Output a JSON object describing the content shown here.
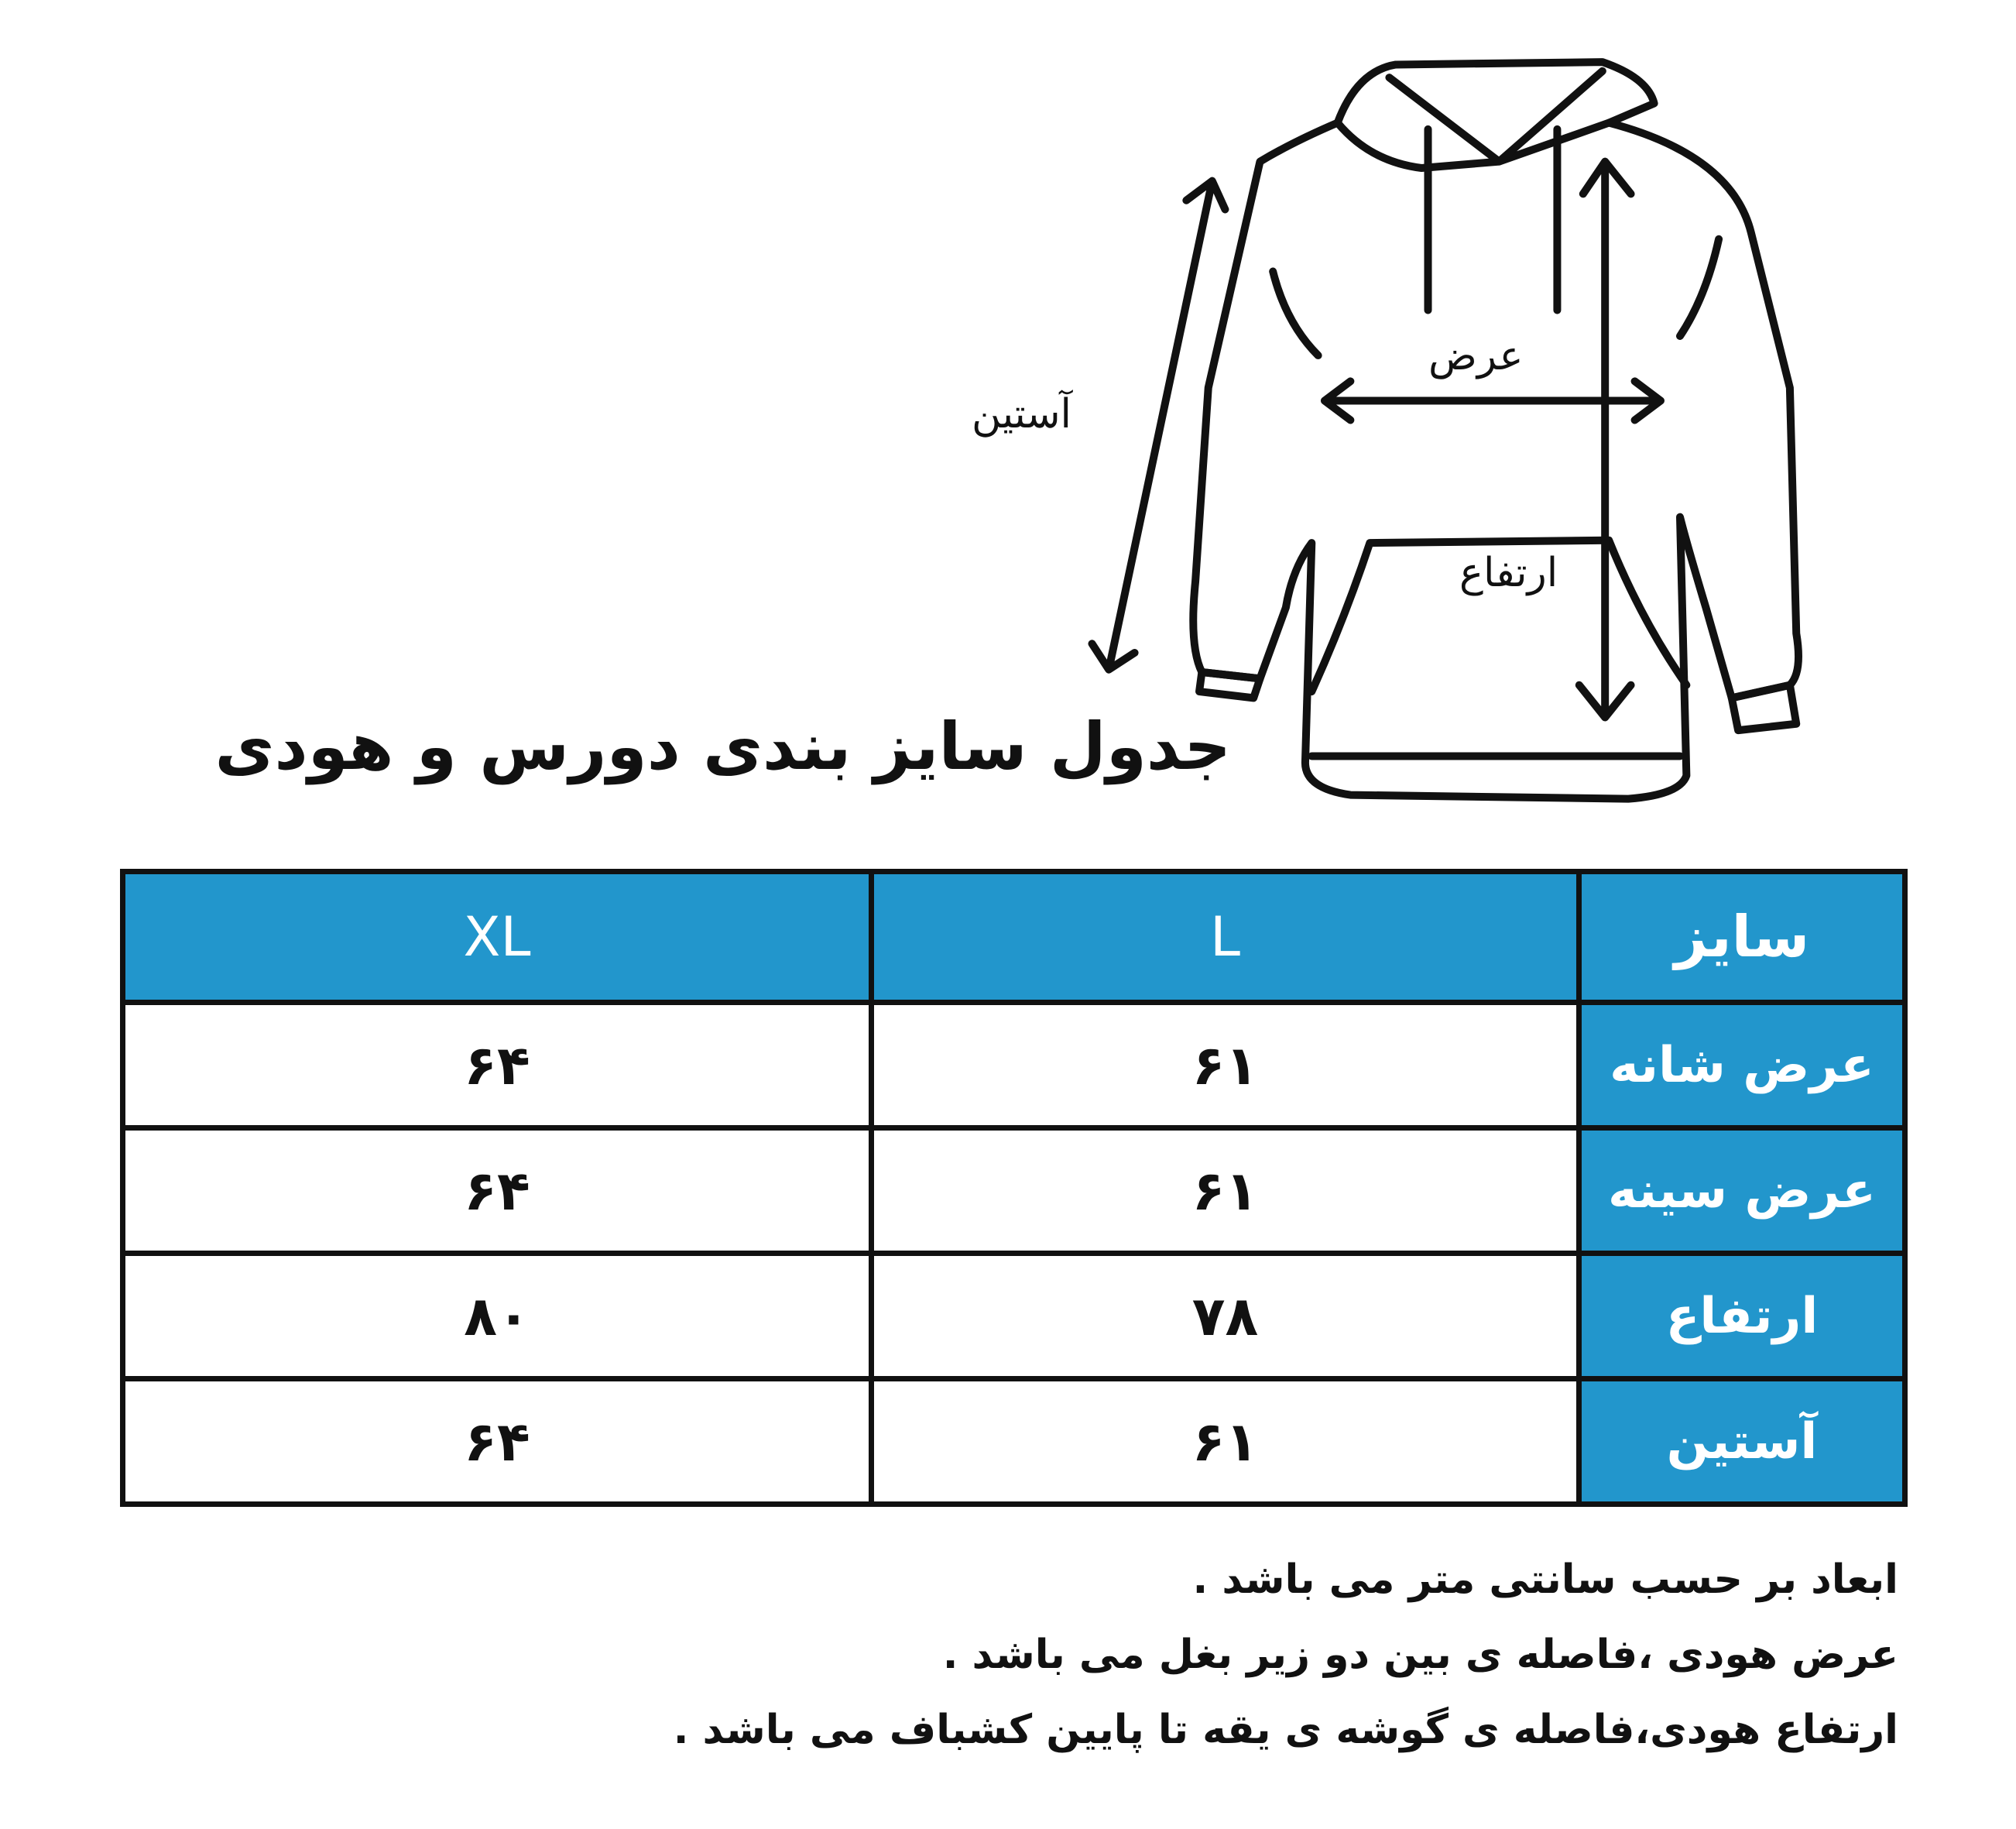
{
  "diagram_labels": {
    "sleeve": "آستین",
    "width": "عرض",
    "height": "ارتفاع"
  },
  "title": "جدول سایز بندی دورس و هودی",
  "table": {
    "header": {
      "label": "سایز",
      "sizes": [
        "L",
        "XL"
      ]
    },
    "rows": [
      {
        "label": "عرض شانه",
        "L": "۶۱",
        "XL": "۶۴"
      },
      {
        "label": "عرض سینه",
        "L": "۶۱",
        "XL": "۶۴"
      },
      {
        "label": "ارتفاع",
        "L": "۷۸",
        "XL": "۸۰"
      },
      {
        "label": "آستین",
        "L": "۶۱",
        "XL": "۶۴"
      }
    ]
  },
  "notes": [
    "ابعاد بر حسب سانتی متر می باشد .",
    "عرض  هودی ،فاصله ی بین دو زیر بغل می باشد .",
    "ارتفاع هودی،فاصله ی گوشه ی یقه تا پایین کشباف می باشد ."
  ],
  "colors": {
    "header_bg": "#2296cc",
    "border": "#111111"
  }
}
